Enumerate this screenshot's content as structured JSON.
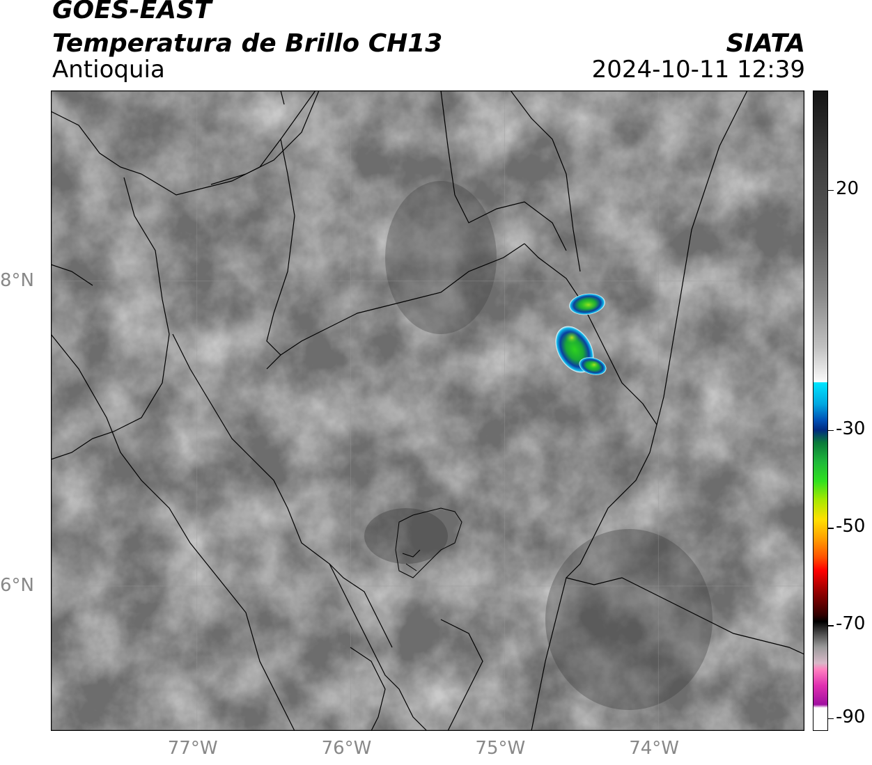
{
  "header": {
    "satellite": "GOES-EAST",
    "product": "Temperatura de Brillo CH13",
    "region": "Antioquia",
    "agency": "SIATA",
    "timestamp": "2024-10-11 12:39"
  },
  "map": {
    "lon_range": [
      -77.95,
      -73.05
    ],
    "lat_range": [
      5.05,
      9.25
    ],
    "lon_ticks": [
      {
        "value": -77,
        "label": "77°W"
      },
      {
        "value": -76,
        "label": "76°W"
      },
      {
        "value": -75,
        "label": "75°W"
      },
      {
        "value": -74,
        "label": "74°W"
      }
    ],
    "lat_ticks": [
      {
        "value": 8,
        "label": "8°N"
      },
      {
        "value": 6,
        "label": "6°N"
      }
    ],
    "gridlines": true,
    "storm_cells": [
      {
        "name": "north",
        "lon": -74.42,
        "lat": 7.78
      },
      {
        "name": "south",
        "lon": -74.48,
        "lat": 7.5
      }
    ]
  },
  "colorbar": {
    "ticks": [
      {
        "value": 20,
        "label": "20"
      },
      {
        "value": -30,
        "label": "-30"
      },
      {
        "value": -50,
        "label": "-50"
      },
      {
        "value": -70,
        "label": "-70"
      },
      {
        "value": -90,
        "label": "-90"
      }
    ]
  }
}
